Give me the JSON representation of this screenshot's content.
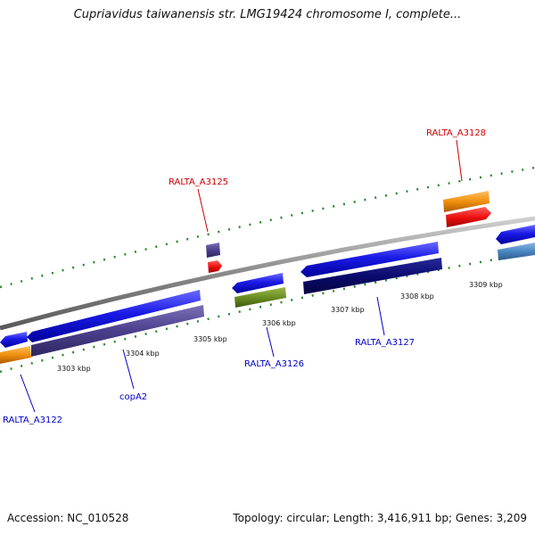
{
  "title": "Cupriavidus taiwanensis str. LMG19424 chromosome I, complete...",
  "footer": {
    "accession": "Accession: NC_010528",
    "topology": "Topology: circular; Length: 3,416,911 bp; Genes: 3,209"
  },
  "ticks": [
    "3303 kbp",
    "3304 kbp",
    "3305 kbp",
    "3306 kbp",
    "3307 kbp",
    "3308 kbp",
    "3309 kbp"
  ],
  "genes": [
    {
      "label": "RALTA_A3122",
      "color": "#0000c8"
    },
    {
      "label": "copA2",
      "color": "#0000c8"
    },
    {
      "label": "RALTA_A3125",
      "color": "#cc0000"
    },
    {
      "label": "RALTA_A3126",
      "color": "#0000c8"
    },
    {
      "label": "RALTA_A3127",
      "color": "#0000c8"
    },
    {
      "label": "RALTA_A3128",
      "color": "#cc0000"
    }
  ],
  "colors": {
    "backbone": "#888888",
    "gene_forward": "#1a1ae6",
    "cds_purple": "#4b3f8c",
    "cds_navy": "#0a0a6e",
    "cds_green": "#6b8e23",
    "cds_orange": "#f0900f",
    "cds_red": "#ee1111",
    "cds_steel": "#4a86c0",
    "tick_green": "#2a8a2a"
  }
}
